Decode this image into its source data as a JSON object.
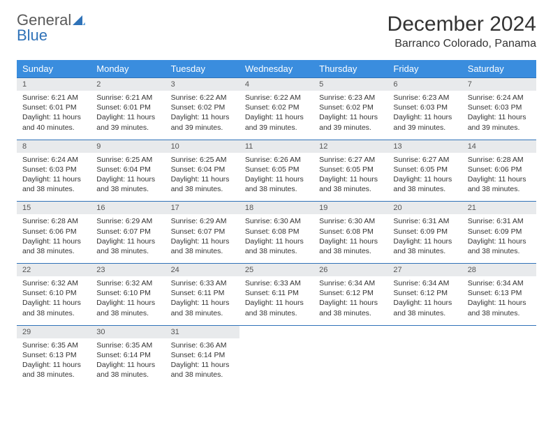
{
  "brand": {
    "general": "General",
    "blue": "Blue"
  },
  "title": "December 2024",
  "location": "Barranco Colorado, Panama",
  "colors": {
    "header_bg": "#3a8dde",
    "header_text": "#ffffff",
    "daynum_bg": "#e8eaec",
    "row_divider": "#2f72b8",
    "brand_blue": "#2f72b8",
    "brand_gray": "#5a5a5a",
    "body_text": "#333333",
    "page_bg": "#ffffff"
  },
  "weekdays": [
    "Sunday",
    "Monday",
    "Tuesday",
    "Wednesday",
    "Thursday",
    "Friday",
    "Saturday"
  ],
  "weeks": [
    [
      {
        "n": "1",
        "sr": "6:21 AM",
        "ss": "6:01 PM",
        "dl": "11 hours and 40 minutes."
      },
      {
        "n": "2",
        "sr": "6:21 AM",
        "ss": "6:01 PM",
        "dl": "11 hours and 39 minutes."
      },
      {
        "n": "3",
        "sr": "6:22 AM",
        "ss": "6:02 PM",
        "dl": "11 hours and 39 minutes."
      },
      {
        "n": "4",
        "sr": "6:22 AM",
        "ss": "6:02 PM",
        "dl": "11 hours and 39 minutes."
      },
      {
        "n": "5",
        "sr": "6:23 AM",
        "ss": "6:02 PM",
        "dl": "11 hours and 39 minutes."
      },
      {
        "n": "6",
        "sr": "6:23 AM",
        "ss": "6:03 PM",
        "dl": "11 hours and 39 minutes."
      },
      {
        "n": "7",
        "sr": "6:24 AM",
        "ss": "6:03 PM",
        "dl": "11 hours and 39 minutes."
      }
    ],
    [
      {
        "n": "8",
        "sr": "6:24 AM",
        "ss": "6:03 PM",
        "dl": "11 hours and 38 minutes."
      },
      {
        "n": "9",
        "sr": "6:25 AM",
        "ss": "6:04 PM",
        "dl": "11 hours and 38 minutes."
      },
      {
        "n": "10",
        "sr": "6:25 AM",
        "ss": "6:04 PM",
        "dl": "11 hours and 38 minutes."
      },
      {
        "n": "11",
        "sr": "6:26 AM",
        "ss": "6:05 PM",
        "dl": "11 hours and 38 minutes."
      },
      {
        "n": "12",
        "sr": "6:27 AM",
        "ss": "6:05 PM",
        "dl": "11 hours and 38 minutes."
      },
      {
        "n": "13",
        "sr": "6:27 AM",
        "ss": "6:05 PM",
        "dl": "11 hours and 38 minutes."
      },
      {
        "n": "14",
        "sr": "6:28 AM",
        "ss": "6:06 PM",
        "dl": "11 hours and 38 minutes."
      }
    ],
    [
      {
        "n": "15",
        "sr": "6:28 AM",
        "ss": "6:06 PM",
        "dl": "11 hours and 38 minutes."
      },
      {
        "n": "16",
        "sr": "6:29 AM",
        "ss": "6:07 PM",
        "dl": "11 hours and 38 minutes."
      },
      {
        "n": "17",
        "sr": "6:29 AM",
        "ss": "6:07 PM",
        "dl": "11 hours and 38 minutes."
      },
      {
        "n": "18",
        "sr": "6:30 AM",
        "ss": "6:08 PM",
        "dl": "11 hours and 38 minutes."
      },
      {
        "n": "19",
        "sr": "6:30 AM",
        "ss": "6:08 PM",
        "dl": "11 hours and 38 minutes."
      },
      {
        "n": "20",
        "sr": "6:31 AM",
        "ss": "6:09 PM",
        "dl": "11 hours and 38 minutes."
      },
      {
        "n": "21",
        "sr": "6:31 AM",
        "ss": "6:09 PM",
        "dl": "11 hours and 38 minutes."
      }
    ],
    [
      {
        "n": "22",
        "sr": "6:32 AM",
        "ss": "6:10 PM",
        "dl": "11 hours and 38 minutes."
      },
      {
        "n": "23",
        "sr": "6:32 AM",
        "ss": "6:10 PM",
        "dl": "11 hours and 38 minutes."
      },
      {
        "n": "24",
        "sr": "6:33 AM",
        "ss": "6:11 PM",
        "dl": "11 hours and 38 minutes."
      },
      {
        "n": "25",
        "sr": "6:33 AM",
        "ss": "6:11 PM",
        "dl": "11 hours and 38 minutes."
      },
      {
        "n": "26",
        "sr": "6:34 AM",
        "ss": "6:12 PM",
        "dl": "11 hours and 38 minutes."
      },
      {
        "n": "27",
        "sr": "6:34 AM",
        "ss": "6:12 PM",
        "dl": "11 hours and 38 minutes."
      },
      {
        "n": "28",
        "sr": "6:34 AM",
        "ss": "6:13 PM",
        "dl": "11 hours and 38 minutes."
      }
    ],
    [
      {
        "n": "29",
        "sr": "6:35 AM",
        "ss": "6:13 PM",
        "dl": "11 hours and 38 minutes."
      },
      {
        "n": "30",
        "sr": "6:35 AM",
        "ss": "6:14 PM",
        "dl": "11 hours and 38 minutes."
      },
      {
        "n": "31",
        "sr": "6:36 AM",
        "ss": "6:14 PM",
        "dl": "11 hours and 38 minutes."
      },
      null,
      null,
      null,
      null
    ]
  ],
  "labels": {
    "sunrise": "Sunrise:",
    "sunset": "Sunset:",
    "daylight": "Daylight:"
  }
}
